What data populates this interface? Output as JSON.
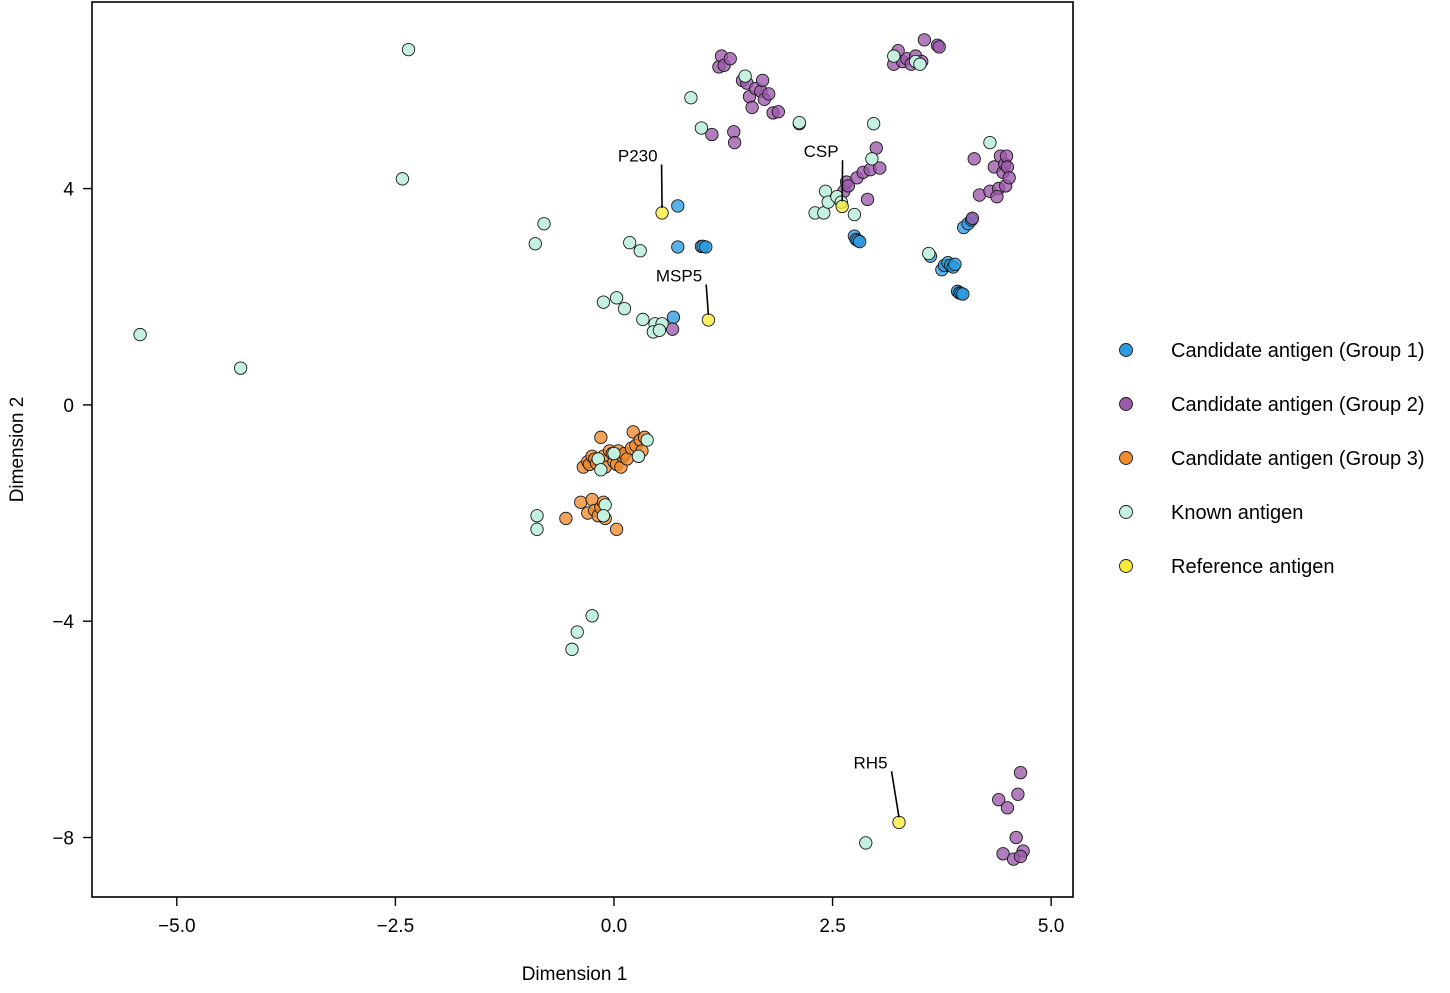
{
  "chart_data": {
    "type": "scatter",
    "xlabel": "Dimension 1",
    "ylabel": "Dimension 2",
    "xlim": [
      -5.97,
      5.25
    ],
    "ylim": [
      -9.1,
      7.45
    ],
    "x_ticks": [
      -5.0,
      -2.5,
      0.0,
      2.5,
      5.0
    ],
    "x_tick_labels": [
      "−5.0",
      "−2.5",
      "0.0",
      "2.5",
      "5.0"
    ],
    "y_ticks": [
      4,
      0,
      -4,
      -8
    ],
    "y_tick_labels": [
      "4",
      "0",
      "−4",
      "−8"
    ],
    "legend_position": "right",
    "series": [
      {
        "name": "Candidate antigen (Group 1)",
        "color": "#2d9be2",
        "points": [
          [
            0.73,
            3.68
          ],
          [
            0.73,
            2.92
          ],
          [
            1.0,
            2.93
          ],
          [
            1.02,
            2.93
          ],
          [
            1.05,
            2.92
          ],
          [
            0.68,
            1.62
          ],
          [
            2.75,
            3.12
          ],
          [
            2.77,
            3.06
          ],
          [
            2.79,
            3.04
          ],
          [
            2.81,
            3.02
          ],
          [
            3.62,
            2.75
          ],
          [
            3.75,
            2.5
          ],
          [
            3.78,
            2.58
          ],
          [
            3.82,
            2.63
          ],
          [
            3.85,
            2.58
          ],
          [
            3.88,
            2.55
          ],
          [
            3.9,
            2.6
          ],
          [
            3.93,
            2.1
          ],
          [
            3.95,
            2.07
          ],
          [
            3.97,
            2.06
          ],
          [
            3.99,
            2.05
          ],
          [
            4.0,
            3.28
          ],
          [
            4.05,
            3.35
          ],
          [
            4.09,
            3.42
          ]
        ]
      },
      {
        "name": "Candidate antigen (Group 2)",
        "color": "#9b59ab",
        "points": [
          [
            1.2,
            6.25
          ],
          [
            1.23,
            6.45
          ],
          [
            1.26,
            6.28
          ],
          [
            1.33,
            6.4
          ],
          [
            1.37,
            5.05
          ],
          [
            1.38,
            4.85
          ],
          [
            1.12,
            5.0
          ],
          [
            1.47,
            6.0
          ],
          [
            1.52,
            5.95
          ],
          [
            1.55,
            5.7
          ],
          [
            1.58,
            5.5
          ],
          [
            1.62,
            5.85
          ],
          [
            1.68,
            5.8
          ],
          [
            1.7,
            6.0
          ],
          [
            1.72,
            5.65
          ],
          [
            1.77,
            5.75
          ],
          [
            1.82,
            5.4
          ],
          [
            1.88,
            5.42
          ],
          [
            2.12,
            5.2
          ],
          [
            0.67,
            1.4
          ],
          [
            2.63,
            3.95
          ],
          [
            2.66,
            4.12
          ],
          [
            2.68,
            4.05
          ],
          [
            2.78,
            4.2
          ],
          [
            2.85,
            4.3
          ],
          [
            2.93,
            4.35
          ],
          [
            3.0,
            4.75
          ],
          [
            3.04,
            4.38
          ],
          [
            2.9,
            3.8
          ],
          [
            3.2,
            6.3
          ],
          [
            3.25,
            6.55
          ],
          [
            3.3,
            6.35
          ],
          [
            3.35,
            6.4
          ],
          [
            3.4,
            6.3
          ],
          [
            3.45,
            6.45
          ],
          [
            3.52,
            6.35
          ],
          [
            3.55,
            6.75
          ],
          [
            3.7,
            6.65
          ],
          [
            3.72,
            6.62
          ],
          [
            4.12,
            4.55
          ],
          [
            4.18,
            3.88
          ],
          [
            4.3,
            3.95
          ],
          [
            4.35,
            4.4
          ],
          [
            4.4,
            4.0
          ],
          [
            4.42,
            4.6
          ],
          [
            4.45,
            4.3
          ],
          [
            4.47,
            4.45
          ],
          [
            4.48,
            4.05
          ],
          [
            4.49,
            4.6
          ],
          [
            4.5,
            4.4
          ],
          [
            4.52,
            4.2
          ],
          [
            4.38,
            3.85
          ],
          [
            4.1,
            3.45
          ],
          [
            4.65,
            -6.8
          ],
          [
            4.4,
            -7.3
          ],
          [
            4.5,
            -7.45
          ],
          [
            4.62,
            -7.2
          ],
          [
            4.6,
            -8.0
          ],
          [
            4.45,
            -8.3
          ],
          [
            4.57,
            -8.4
          ],
          [
            4.68,
            -8.25
          ],
          [
            4.65,
            -8.35
          ]
        ]
      },
      {
        "name": "Candidate antigen (Group 3)",
        "color": "#ef8a2e",
        "points": [
          [
            -0.35,
            -1.15
          ],
          [
            -0.3,
            -1.05
          ],
          [
            -0.28,
            -1.1
          ],
          [
            -0.25,
            -0.95
          ],
          [
            -0.22,
            -1.0
          ],
          [
            -0.2,
            -1.08
          ],
          [
            -0.15,
            -0.6
          ],
          [
            -0.12,
            -0.95
          ],
          [
            -0.1,
            -1.15
          ],
          [
            -0.05,
            -0.85
          ],
          [
            -0.02,
            -0.9
          ],
          [
            0.0,
            -1.05
          ],
          [
            0.03,
            -1.1
          ],
          [
            0.05,
            -0.85
          ],
          [
            0.08,
            -1.15
          ],
          [
            0.1,
            -0.95
          ],
          [
            0.12,
            -0.9
          ],
          [
            0.15,
            -1.0
          ],
          [
            0.2,
            -0.8
          ],
          [
            0.22,
            -0.5
          ],
          [
            0.25,
            -0.75
          ],
          [
            0.28,
            -0.95
          ],
          [
            0.3,
            -0.65
          ],
          [
            0.32,
            -0.85
          ],
          [
            0.35,
            -0.6
          ],
          [
            -0.55,
            -2.1
          ],
          [
            -0.38,
            -1.8
          ],
          [
            -0.3,
            -2.0
          ],
          [
            -0.25,
            -1.75
          ],
          [
            -0.22,
            -1.95
          ],
          [
            -0.18,
            -2.05
          ],
          [
            -0.15,
            -1.9
          ],
          [
            -0.12,
            -1.8
          ],
          [
            -0.1,
            -2.1
          ],
          [
            0.03,
            -2.3
          ]
        ]
      },
      {
        "name": "Known antigen",
        "color": "#c4f0df",
        "points": [
          [
            -5.42,
            1.3
          ],
          [
            -4.27,
            0.68
          ],
          [
            -2.42,
            4.18
          ],
          [
            -2.35,
            6.57
          ],
          [
            -0.9,
            2.98
          ],
          [
            -0.8,
            3.35
          ],
          [
            -0.88,
            -2.05
          ],
          [
            -0.88,
            -2.3
          ],
          [
            -0.25,
            -3.9
          ],
          [
            -0.42,
            -4.2
          ],
          [
            -0.48,
            -4.52
          ],
          [
            0.18,
            3.0
          ],
          [
            0.3,
            2.85
          ],
          [
            -0.12,
            1.9
          ],
          [
            0.03,
            1.98
          ],
          [
            0.12,
            1.78
          ],
          [
            0.33,
            1.58
          ],
          [
            0.47,
            1.5
          ],
          [
            0.55,
            1.5
          ],
          [
            0.45,
            1.35
          ],
          [
            0.52,
            1.38
          ],
          [
            -0.18,
            -1.0
          ],
          [
            -0.15,
            -1.2
          ],
          [
            -0.1,
            -1.85
          ],
          [
            -0.12,
            -2.05
          ],
          [
            0.0,
            -0.9
          ],
          [
            0.28,
            -0.95
          ],
          [
            0.38,
            -0.65
          ],
          [
            0.88,
            5.68
          ],
          [
            1.0,
            5.12
          ],
          [
            1.5,
            6.08
          ],
          [
            2.12,
            5.22
          ],
          [
            2.3,
            3.55
          ],
          [
            2.4,
            3.55
          ],
          [
            2.42,
            3.95
          ],
          [
            2.45,
            3.75
          ],
          [
            2.55,
            3.85
          ],
          [
            2.6,
            3.75
          ],
          [
            2.75,
            3.52
          ],
          [
            2.95,
            4.55
          ],
          [
            2.97,
            5.2
          ],
          [
            2.88,
            -8.1
          ],
          [
            3.2,
            6.45
          ],
          [
            3.45,
            6.35
          ],
          [
            3.5,
            6.3
          ],
          [
            3.6,
            2.8
          ],
          [
            4.3,
            4.85
          ]
        ]
      },
      {
        "name": "Reference antigen",
        "color": "#f8ec3b",
        "points": [
          [
            0.55,
            3.55
          ],
          [
            1.08,
            1.57
          ],
          [
            2.61,
            3.67
          ],
          [
            3.26,
            -7.72
          ]
        ]
      }
    ],
    "annotations": [
      {
        "label": "P230",
        "point": [
          0.55,
          3.55
        ],
        "text_at": [
          0.27,
          4.5
        ]
      },
      {
        "label": "MSP5",
        "point": [
          1.08,
          1.57
        ],
        "text_at": [
          0.78,
          2.28
        ]
      },
      {
        "label": "CSP",
        "point": [
          2.61,
          3.67
        ],
        "text_at": [
          2.34,
          4.58
        ]
      },
      {
        "label": "RH5",
        "point": [
          3.26,
          -7.72
        ],
        "text_at": [
          2.9,
          -6.72
        ]
      }
    ]
  }
}
